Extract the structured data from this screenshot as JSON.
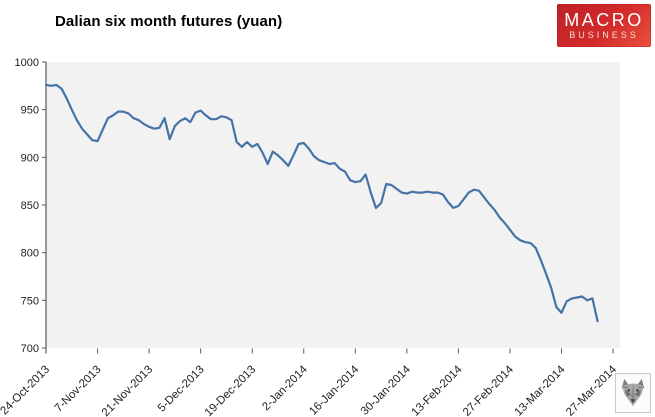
{
  "header": {
    "title": "Dalian six month futures (yuan)"
  },
  "brand": {
    "line1": "MACRO",
    "line2": "BUSINESS",
    "bg_color": "#d32b2b",
    "text_color": "#ffffff"
  },
  "watermark": {
    "icon": "wolf-emblem-icon"
  },
  "chart_data": {
    "type": "line",
    "title": "Dalian six month futures (yuan)",
    "x_tick_labels": [
      "24-Oct-2013",
      "7-Nov-2013",
      "21-Nov-2013",
      "5-Dec-2013",
      "19-Dec-2013",
      "2-Jan-2014",
      "16-Jan-2014",
      "30-Jan-2014",
      "13-Feb-2014",
      "27-Feb-2014",
      "13-Mar-2014",
      "27-Mar-2014"
    ],
    "points_per_tick": 10,
    "ylim": [
      700,
      1000
    ],
    "y_ticks": [
      1000,
      950,
      900,
      850,
      800,
      750,
      700
    ],
    "grid": false,
    "legend": false,
    "line_color": "#4573a7",
    "plot_bg": "#f2f2f2",
    "axis_color": "#595959",
    "label_color": "#1f1f1f",
    "values": [
      976,
      975,
      976,
      972,
      962,
      950,
      939,
      930,
      924,
      918,
      917,
      929,
      941,
      944,
      948,
      948,
      946,
      941,
      939,
      935,
      932,
      930,
      931,
      941,
      919,
      933,
      938,
      941,
      937,
      947,
      949,
      944,
      940,
      940,
      943,
      942,
      939,
      916,
      911,
      916,
      911,
      914,
      905,
      893,
      906,
      902,
      897,
      891,
      902,
      914,
      915,
      909,
      901,
      897,
      895,
      893,
      894,
      888,
      885,
      876,
      874,
      875,
      882,
      863,
      847,
      852,
      872,
      871,
      867,
      863,
      862,
      864,
      863,
      863,
      864,
      863,
      863,
      861,
      853,
      847,
      849,
      856,
      863,
      866,
      865,
      858,
      851,
      845,
      837,
      831,
      824,
      817,
      813,
      811,
      810,
      805,
      792,
      778,
      763,
      743,
      737,
      749,
      752,
      753,
      754,
      750,
      752,
      728
    ]
  }
}
